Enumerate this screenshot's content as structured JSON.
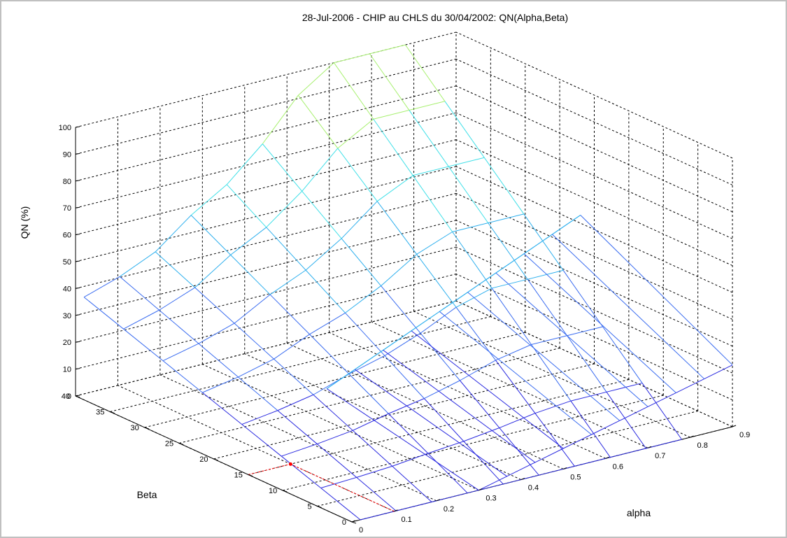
{
  "chart_data": {
    "type": "surface3d",
    "title": "28-Jul-2006 - CHIP au CHLS du 30/04/2002: QN(Alpha,Beta)",
    "xlabel": "alpha",
    "ylabel": "Beta",
    "zlabel": "QN (%)",
    "xlim": [
      0,
      0.9
    ],
    "ylim": [
      0,
      40
    ],
    "zlim": [
      0,
      100
    ],
    "x_ticks": [
      "0",
      "0.1",
      "0.2",
      "0.3",
      "0.4",
      "0.5",
      "0.6",
      "0.7",
      "0.8",
      "0.9"
    ],
    "y_ticks": [
      "0",
      "5",
      "10",
      "15",
      "20",
      "25",
      "30",
      "35",
      "40"
    ],
    "z_ticks": [
      "0",
      "10",
      "20",
      "30",
      "40",
      "50",
      "60",
      "70",
      "80",
      "90",
      "100"
    ],
    "grid": true,
    "colormap": [
      "#2b2be0",
      "#3a6cf0",
      "#2fb0ee",
      "#40e0e8",
      "#a8f070"
    ],
    "surface_front_edge": {
      "alpha_at_beta_40": [
        0.02,
        0.1,
        0.2,
        0.3,
        0.4,
        0.5,
        0.6,
        0.7,
        0.8,
        0.9
      ],
      "QN_at_beta_40": [
        36,
        40,
        47,
        60,
        68,
        88,
        100,
        100,
        100,
        100
      ]
    },
    "surface_back_plateau": {
      "alpha": [
        0.3,
        0.9
      ],
      "beta_low_QN": [
        0,
        23
      ],
      "beta_high_QN": [
        12,
        53
      ]
    },
    "marker": {
      "alpha": 0.1,
      "beta": 15,
      "QN": 0,
      "color": "#ff0000"
    }
  }
}
